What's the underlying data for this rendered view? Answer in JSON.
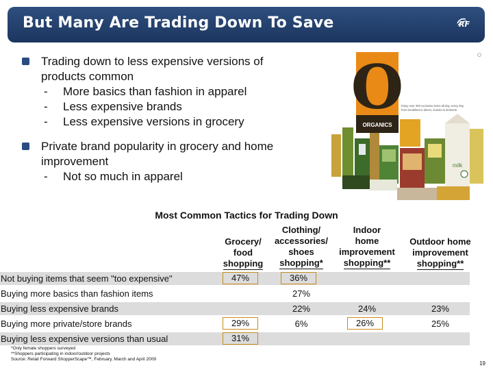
{
  "title": "But Many Are Trading Down To Save",
  "logo_text": "RF",
  "bullets": [
    {
      "text_lines": [
        "Trading down to less expensive versions of",
        "products common"
      ],
      "subs": [
        "More basics than fashion in apparel",
        "Less expensive brands",
        "Less expensive versions in grocery"
      ]
    },
    {
      "text_lines": [
        "Private brand popularity in grocery and home",
        "improvement"
      ],
      "subs": [
        "Not so much in apparel"
      ]
    }
  ],
  "photo": {
    "brand": "ORGANICS",
    "big_letter": "O",
    "tagline": [
      "Enjoy over 300 exclusive items all day, every day,",
      "from breakfast to dinner, snacks to desserts."
    ],
    "carton_label": "milk"
  },
  "table": {
    "title": "Most Common Tactics for Trading Down",
    "columns": [
      [
        "Grocery/",
        "food",
        "shopping"
      ],
      [
        "Clothing/",
        "accessories/",
        "shoes",
        "shopping*"
      ],
      [
        "Indoor",
        "home",
        "improvement",
        "shopping**"
      ],
      [
        "Outdoor home",
        "improvement",
        "shopping**"
      ]
    ],
    "rows": [
      {
        "label": "Not buying items that seem \"too expensive\"",
        "values": [
          "47%",
          "36%",
          "",
          ""
        ],
        "boxed": [
          true,
          true,
          false,
          false
        ]
      },
      {
        "label": "Buying more basics than fashion items",
        "values": [
          "",
          "27%",
          "",
          ""
        ],
        "boxed": [
          false,
          false,
          false,
          false
        ]
      },
      {
        "label": "Buying less expensive brands",
        "values": [
          "",
          "22%",
          "24%",
          "23%"
        ],
        "boxed": [
          false,
          false,
          false,
          false
        ]
      },
      {
        "label": "Buying more private/store brands",
        "values": [
          "29%",
          "6%",
          "26%",
          "25%"
        ],
        "boxed": [
          true,
          false,
          true,
          false
        ]
      },
      {
        "label": "Buying less expensive versions than usual",
        "values": [
          "31%",
          "",
          "",
          ""
        ],
        "boxed": [
          true,
          false,
          false,
          false
        ]
      }
    ]
  },
  "footnotes": [
    "*Only female shoppers surveyed",
    "**Shoppers participating in indoor/outdoor projects",
    "Source: Retail Forward ShopperScape™, February, March and April 2009"
  ],
  "page_number": "19"
}
